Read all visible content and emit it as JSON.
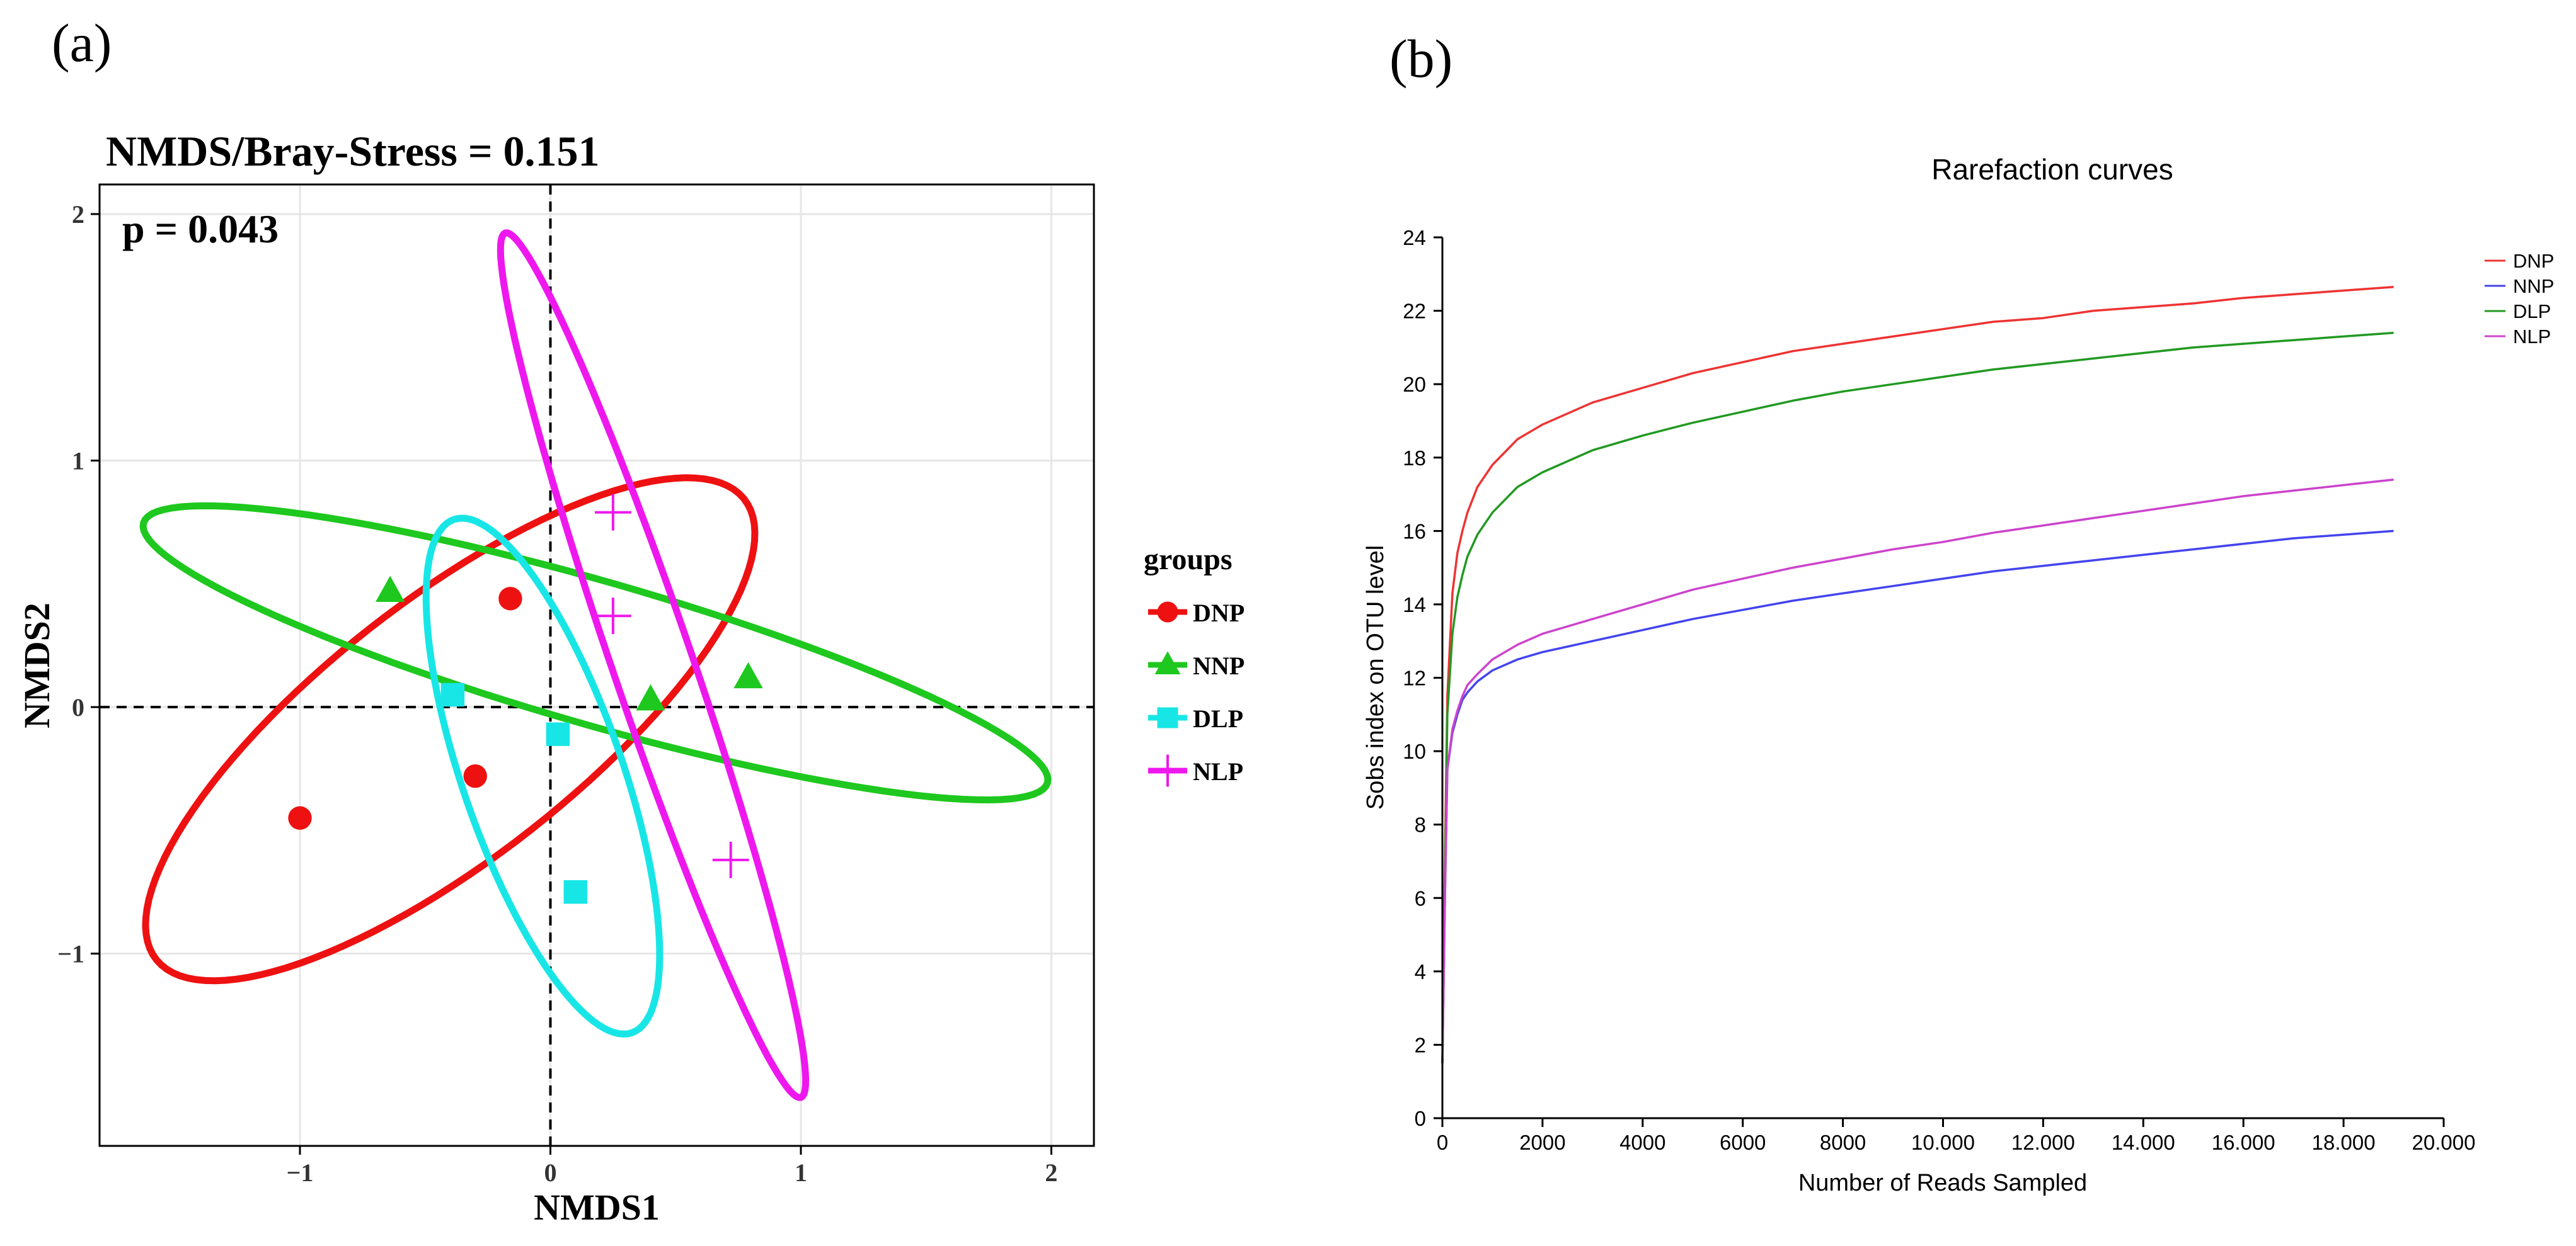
{
  "panel_labels": {
    "a": "(a)",
    "b": "(b)"
  },
  "colors": {
    "DNP_a": "#ee1111",
    "NNP_a": "#1ec81e",
    "DLP_a": "#18e6e6",
    "NLP_a": "#ee18ee",
    "DNP_b": "#ee3333",
    "NNP_b": "#4444ee",
    "DLP_b": "#229922",
    "NLP_b": "#cc44cc",
    "grid": "#e6e6e6",
    "axis": "#000000"
  },
  "chart_data": [
    {
      "type": "scatter",
      "title": "NMDS/Bray-Stress = 0.151",
      "annotation": "p = 0.043",
      "xlabel": "NMDS1",
      "ylabel": "NMDS2",
      "xlim": [
        -1.8,
        2.17
      ],
      "ylim": [
        -1.78,
        2.12
      ],
      "xticks": [
        -1,
        0,
        1,
        2
      ],
      "yticks": [
        -1,
        0,
        1,
        2
      ],
      "xtick_labels": [
        "−1",
        "0",
        "1",
        "2"
      ],
      "ytick_labels": [
        "−1",
        "0",
        "1",
        "2"
      ],
      "grid": true,
      "reference_lines": {
        "x": 0,
        "y": 0
      },
      "legend": {
        "title": "groups",
        "placement": "right",
        "entries": [
          {
            "name": "DNP",
            "marker": "circle"
          },
          {
            "name": "NNP",
            "marker": "triangle"
          },
          {
            "name": "DLP",
            "marker": "square"
          },
          {
            "name": "NLP",
            "marker": "plus"
          }
        ]
      },
      "series": [
        {
          "name": "DNP",
          "marker": "circle",
          "points": [
            [
              -0.16,
              0.44
            ],
            [
              -0.3,
              -0.28
            ],
            [
              -1.0,
              -0.45
            ]
          ],
          "ellipse": {
            "center": [
              -0.4,
              -0.09
            ],
            "semi_axes": [
              1.5,
              0.52
            ],
            "angle_deg": 38.6
          }
        },
        {
          "name": "NNP",
          "marker": "triangle",
          "points": [
            [
              -0.64,
              0.47
            ],
            [
              0.4,
              0.03
            ],
            [
              0.79,
              0.12
            ]
          ],
          "ellipse": {
            "center": [
              0.18,
              0.22
            ],
            "semi_axes": [
              1.88,
              0.29
            ],
            "angle_deg": -16.3
          }
        },
        {
          "name": "DLP",
          "marker": "square",
          "points": [
            [
              -0.39,
              0.05
            ],
            [
              0.03,
              -0.11
            ],
            [
              0.1,
              -0.75
            ]
          ],
          "ellipse": {
            "center": [
              -0.03,
              -0.28
            ],
            "semi_axes": [
              1.1,
              0.32
            ],
            "angle_deg": -71.2
          }
        },
        {
          "name": "NLP",
          "marker": "plus",
          "points": [
            [
              0.25,
              0.79
            ],
            [
              0.25,
              0.37
            ],
            [
              0.72,
              -0.62
            ]
          ],
          "ellipse": {
            "center": [
              0.41,
              0.17
            ],
            "semi_axes": [
              1.85,
              0.16
            ],
            "angle_deg": -71.4
          }
        }
      ]
    },
    {
      "type": "line",
      "title": "Rarefaction curves",
      "xlabel": "Number of Reads Sampled",
      "ylabel": "Sobs index on OTU level",
      "xlim": [
        0,
        20000
      ],
      "ylim": [
        0,
        24
      ],
      "xticks": [
        0,
        2000,
        4000,
        6000,
        8000,
        10000,
        12000,
        14000,
        16000,
        18000,
        20000
      ],
      "xtick_labels": [
        "0",
        "2000",
        "4000",
        "6000",
        "8000",
        "10.000",
        "12.000",
        "14.000",
        "16.000",
        "18.000",
        "20.000"
      ],
      "yticks": [
        0,
        2,
        4,
        6,
        8,
        10,
        12,
        14,
        16,
        18,
        20,
        22,
        24
      ],
      "ytick_labels": [
        "0",
        "2",
        "4",
        "6",
        "8",
        "10",
        "12",
        "14",
        "16",
        "18",
        "20",
        "22",
        "24"
      ],
      "grid": false,
      "legend": {
        "placement": "top-right",
        "entries": [
          "DNP",
          "NNP",
          "DLP",
          "NLP"
        ]
      },
      "x": [
        0,
        50,
        100,
        200,
        300,
        400,
        500,
        700,
        1000,
        1500,
        2000,
        2500,
        3000,
        4000,
        5000,
        6000,
        7000,
        8000,
        9000,
        10000,
        11000,
        12000,
        13000,
        14000,
        15000,
        16000,
        17000,
        18000,
        19000
      ],
      "series": [
        {
          "name": "DNP",
          "values": [
            1.5,
            7.0,
            11.5,
            14.3,
            15.4,
            16.0,
            16.5,
            17.2,
            17.8,
            18.5,
            18.9,
            19.2,
            19.5,
            19.9,
            20.3,
            20.6,
            20.9,
            21.1,
            21.3,
            21.5,
            21.7,
            21.8,
            22.0,
            22.1,
            22.2,
            22.35,
            22.45,
            22.55,
            22.65
          ]
        },
        {
          "name": "NNP",
          "values": [
            1.5,
            6.0,
            9.5,
            10.5,
            11.0,
            11.4,
            11.6,
            11.9,
            12.2,
            12.5,
            12.7,
            12.85,
            13.0,
            13.3,
            13.6,
            13.85,
            14.1,
            14.3,
            14.5,
            14.7,
            14.9,
            15.05,
            15.2,
            15.35,
            15.5,
            15.65,
            15.8,
            15.9,
            16.0
          ]
        },
        {
          "name": "DLP",
          "values": [
            1.5,
            6.5,
            11.0,
            13.2,
            14.2,
            14.8,
            15.3,
            15.9,
            16.5,
            17.2,
            17.6,
            17.9,
            18.2,
            18.6,
            18.95,
            19.25,
            19.55,
            19.8,
            20.0,
            20.2,
            20.4,
            20.55,
            20.7,
            20.85,
            21.0,
            21.1,
            21.2,
            21.3,
            21.4
          ]
        },
        {
          "name": "NLP",
          "values": [
            1.5,
            6.0,
            9.5,
            10.6,
            11.1,
            11.5,
            11.8,
            12.1,
            12.5,
            12.9,
            13.2,
            13.4,
            13.6,
            14.0,
            14.4,
            14.7,
            15.0,
            15.25,
            15.5,
            15.7,
            15.95,
            16.15,
            16.35,
            16.55,
            16.75,
            16.95,
            17.1,
            17.25,
            17.4
          ]
        }
      ]
    }
  ]
}
